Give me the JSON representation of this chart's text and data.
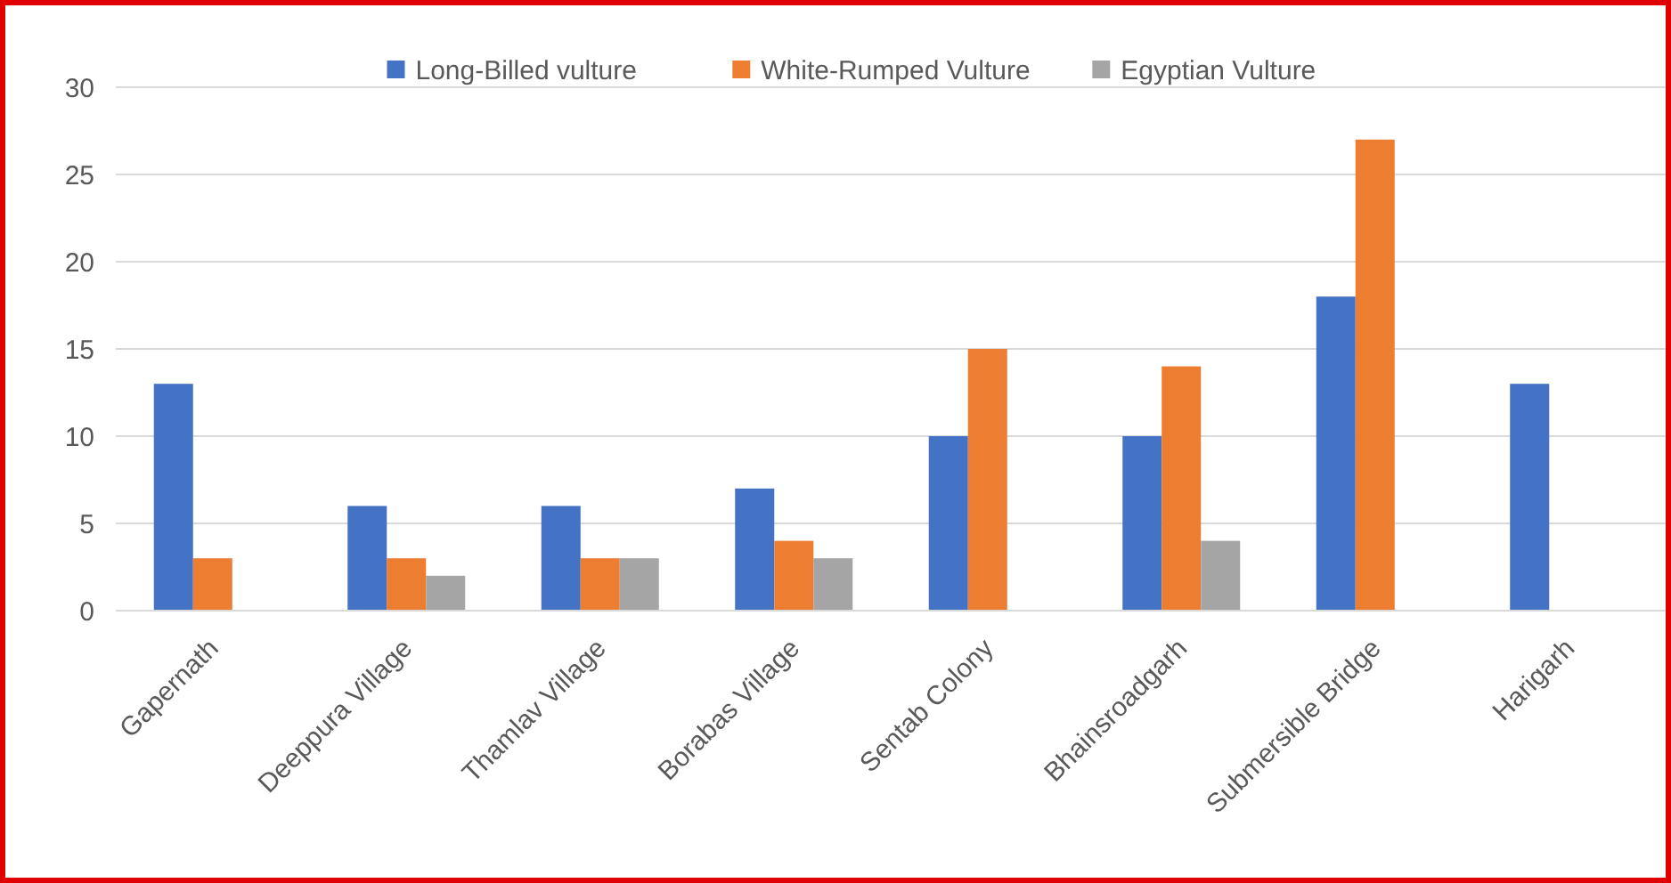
{
  "chart_data": {
    "type": "bar",
    "categories": [
      "Gapernath",
      "Deeppura Village",
      "Thamlav Village",
      "Borabas Village",
      "Sentab Colony",
      "Bhainsroadgarh",
      "Submersible Bridge",
      "Harigarh"
    ],
    "series": [
      {
        "name": "Long-Billed vulture",
        "color": "#4472c4",
        "values": [
          13,
          6,
          6,
          7,
          10,
          10,
          18,
          13
        ]
      },
      {
        "name": "White-Rumped Vulture",
        "color": "#ed7d31",
        "values": [
          3,
          3,
          3,
          4,
          15,
          14,
          27,
          0
        ]
      },
      {
        "name": "Egyptian Vulture",
        "color": "#a5a5a5",
        "values": [
          0,
          2,
          3,
          3,
          0,
          4,
          0,
          0
        ]
      }
    ],
    "ylim": [
      0,
      30
    ],
    "yticks": [
      0,
      5,
      10,
      15,
      20,
      25,
      30
    ],
    "grid": "y",
    "legend": "top"
  }
}
